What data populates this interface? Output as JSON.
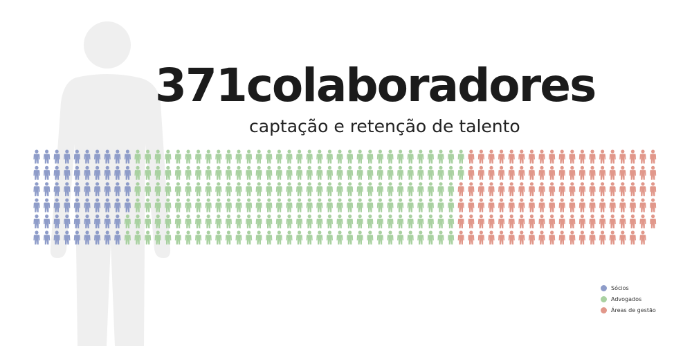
{
  "heading": {
    "title": "371colaboradores",
    "subtitle": "captação e retenção de talento"
  },
  "colors": {
    "background_figure": "#efefef",
    "socios": "#8e9cc9",
    "advogados": "#a9d1a1",
    "areas_de_gestao": "#e1978a"
  },
  "chart_data": {
    "type": "pictogram",
    "total": 371,
    "rows": 6,
    "columns": 62,
    "fill_order": "column-major, top to bottom within each column",
    "series": [
      {
        "name": "Sócios",
        "value": 58,
        "color": "#8e9cc9"
      },
      {
        "name": "Advogados",
        "value": 196,
        "color": "#a9d1a1"
      },
      {
        "name": "Áreas de gestão",
        "value": 117,
        "color": "#e1978a"
      }
    ],
    "legend_position": "bottom-right"
  },
  "legend": {
    "items": [
      {
        "label": "Sócios",
        "color": "#8e9cc9"
      },
      {
        "label": "Advogados",
        "color": "#a9d1a1"
      },
      {
        "label": "Áreas de gestão",
        "color": "#e1978a"
      }
    ]
  }
}
